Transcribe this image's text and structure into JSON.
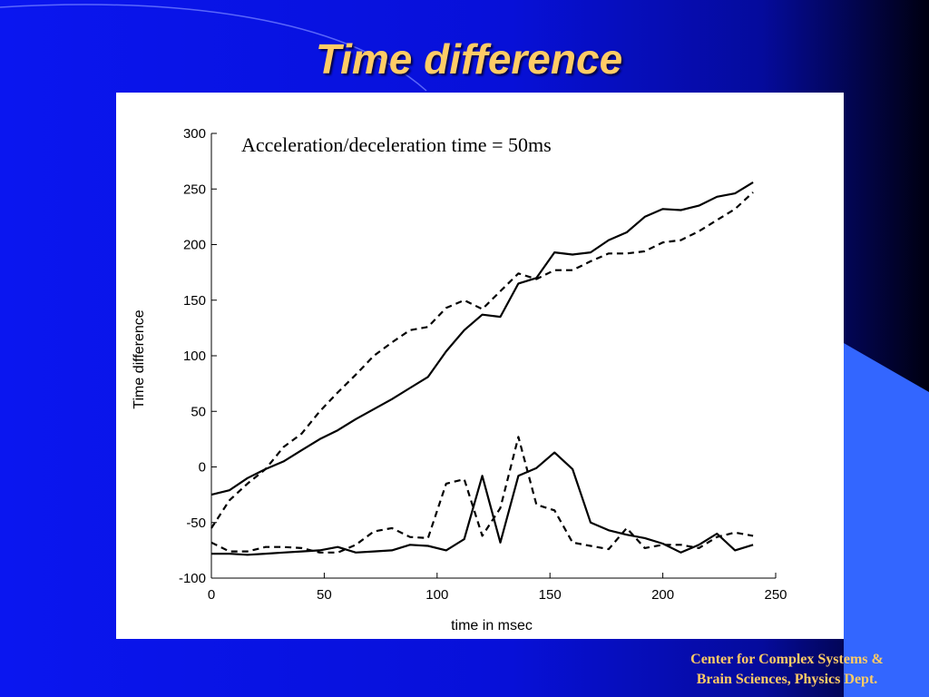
{
  "slide": {
    "title": "Time difference",
    "footer_line1": "Center for Complex Systems &",
    "footer_line2": "Brain Sciences, Physics Dept."
  },
  "colors": {
    "background": "#0a16f0",
    "title": "#ffcc66",
    "footer": "#ffcc66",
    "accent_shape": "#3366ff",
    "panel": "#ffffff",
    "lines": "#000000"
  },
  "chart_data": {
    "type": "line",
    "title": "",
    "annotation": "Acceleration/deceleration time = 50ms",
    "xlabel": "time in msec",
    "ylabel": "Time difference",
    "xlim": [
      0,
      250
    ],
    "ylim": [
      -100,
      300
    ],
    "xticks": [
      0,
      50,
      100,
      150,
      200,
      250
    ],
    "yticks": [
      -100,
      -50,
      0,
      50,
      100,
      150,
      200,
      250,
      300
    ],
    "grid": false,
    "legend": "none",
    "series": [
      {
        "style": "solid",
        "x": [
          0,
          8,
          16,
          24,
          32,
          40,
          48,
          56,
          64,
          72,
          80,
          88,
          96,
          104,
          112,
          120,
          128,
          136,
          144,
          152,
          160,
          168,
          176,
          184,
          192,
          200,
          208,
          216,
          224,
          232,
          240
        ],
        "y": [
          -25,
          -21,
          -10,
          -2,
          5,
          15,
          25,
          33,
          43,
          52,
          61,
          71,
          81,
          104,
          123,
          137,
          135,
          165,
          170,
          193,
          191,
          193,
          204,
          211,
          225,
          232,
          231,
          235,
          243,
          246,
          256
        ]
      },
      {
        "style": "dashed",
        "x": [
          0,
          8,
          16,
          24,
          32,
          40,
          48,
          56,
          64,
          72,
          80,
          88,
          96,
          104,
          112,
          120,
          128,
          136,
          144,
          152,
          160,
          168,
          176,
          184,
          192,
          200,
          208,
          216,
          224,
          232,
          240
        ],
        "y": [
          -55,
          -30,
          -15,
          -2,
          18,
          30,
          50,
          67,
          83,
          100,
          112,
          123,
          126,
          143,
          150,
          142,
          158,
          174,
          169,
          177,
          177,
          185,
          192,
          192,
          194,
          202,
          204,
          212,
          222,
          232,
          247
        ]
      },
      {
        "style": "solid",
        "x": [
          0,
          8,
          16,
          24,
          32,
          40,
          48,
          56,
          64,
          72,
          80,
          88,
          96,
          104,
          112,
          120,
          128,
          136,
          144,
          152,
          160,
          168,
          176,
          184,
          192,
          200,
          208,
          216,
          224,
          232,
          240
        ],
        "y": [
          -78,
          -78,
          -79,
          -78,
          -77,
          -76,
          -75,
          -72,
          -77,
          -76,
          -75,
          -70,
          -71,
          -75,
          -65,
          -8,
          -68,
          -8,
          -1,
          13,
          -2,
          -50,
          -57,
          -61,
          -64,
          -69,
          -77,
          -70,
          -60,
          -75,
          -70
        ]
      },
      {
        "style": "dashed",
        "x": [
          0,
          8,
          16,
          24,
          32,
          40,
          48,
          56,
          64,
          72,
          80,
          88,
          96,
          104,
          112,
          120,
          128,
          136,
          144,
          152,
          160,
          168,
          176,
          184,
          192,
          200,
          208,
          216,
          224,
          232,
          240
        ],
        "y": [
          -68,
          -76,
          -76,
          -72,
          -72,
          -73,
          -77,
          -77,
          -70,
          -58,
          -55,
          -63,
          -64,
          -15,
          -11,
          -62,
          -37,
          27,
          -34,
          -39,
          -68,
          -71,
          -74,
          -55,
          -73,
          -70,
          -70,
          -73,
          -63,
          -59,
          -62
        ]
      }
    ]
  }
}
